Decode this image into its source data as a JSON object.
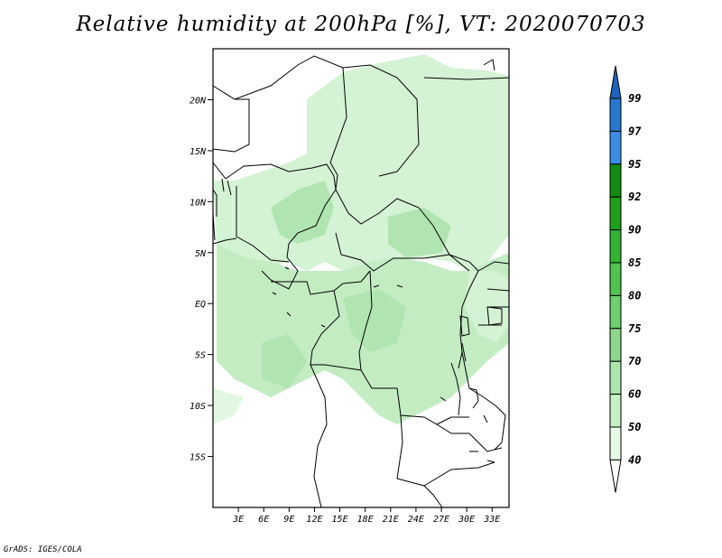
{
  "title": "Relative humidity at 200hPa [%], VT: 2020070703",
  "credit": "GrADS: IGES/COLA",
  "map": {
    "lat_labels": [
      "20N",
      "15N",
      "10N",
      "5N",
      "EQ",
      "5S",
      "10S",
      "15S"
    ],
    "lat_values": [
      20,
      15,
      10,
      5,
      0,
      -5,
      -10,
      -15
    ],
    "lon_labels": [
      "3E",
      "6E",
      "9E",
      "12E",
      "15E",
      "18E",
      "21E",
      "24E",
      "27E",
      "30E",
      "33E"
    ],
    "lon_values": [
      3,
      6,
      9,
      12,
      15,
      18,
      21,
      24,
      27,
      30,
      33
    ],
    "lon_range": [
      0,
      35
    ],
    "lat_range": [
      -20,
      25
    ]
  },
  "colorbar": {
    "levels": [
      "40",
      "50",
      "60",
      "70",
      "75",
      "80",
      "85",
      "90",
      "92",
      "95",
      "97",
      "99"
    ],
    "colors": [
      "#ffffff",
      "#e6fae6",
      "#c8f0c8",
      "#aae6aa",
      "#8cd98c",
      "#6ecf6e",
      "#50c350",
      "#32b432",
      "#1ea01e",
      "#118c11",
      "#3c8ce6",
      "#2878d2",
      "#1e64be"
    ]
  },
  "colors": {
    "land_border": "#000000",
    "rh_40_50": "#e6fae6",
    "rh_50_60": "#c8f0c8"
  }
}
